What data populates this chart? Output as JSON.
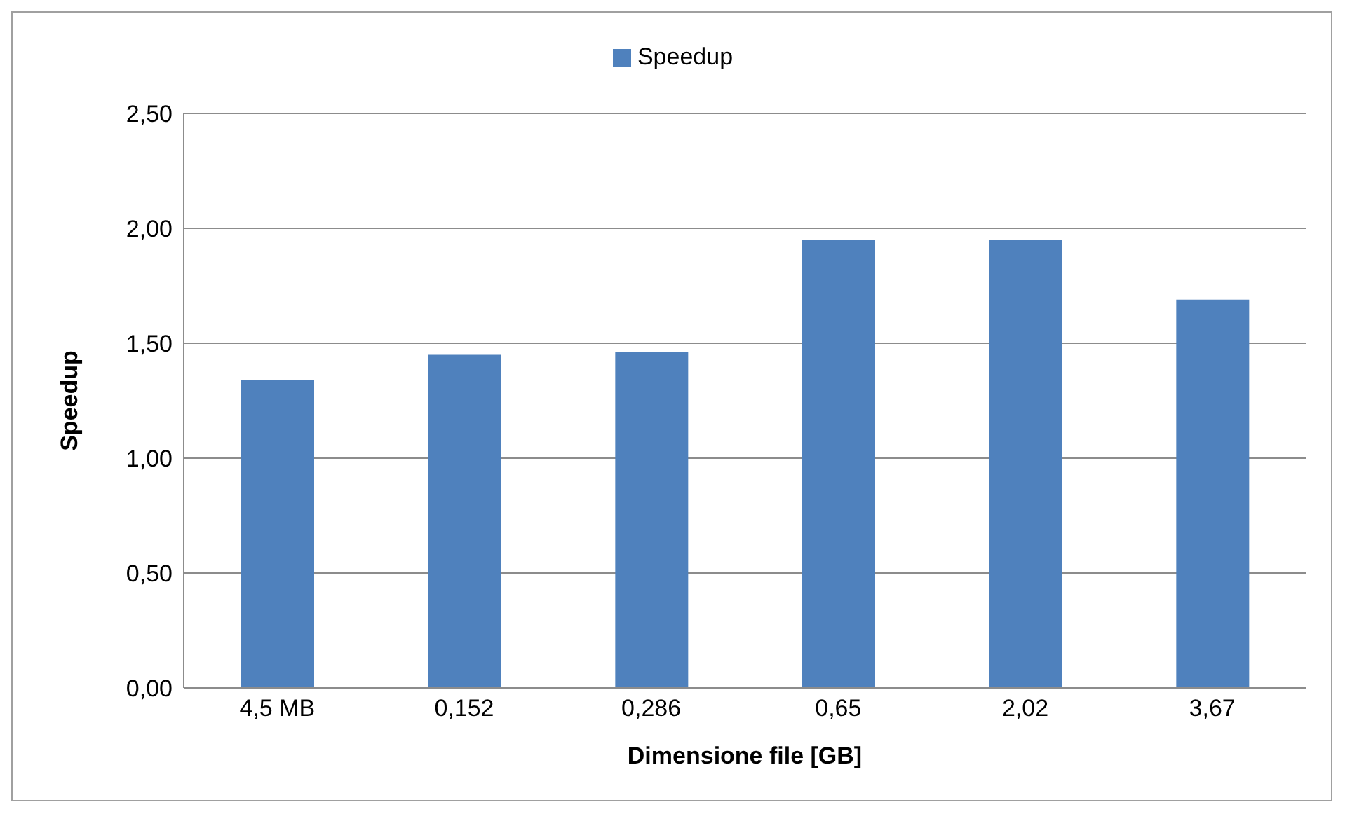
{
  "chart_data": {
    "type": "bar",
    "xlabel": "Dimensione file [GB]",
    "ylabel": "Speedup",
    "categories": [
      "4,5 MB",
      "0,152",
      "0,286",
      "0,65",
      "2,02",
      "3,67"
    ],
    "series": [
      {
        "name": "Speedup",
        "color": "#4f81bd",
        "values": [
          1.34,
          1.45,
          1.46,
          1.95,
          1.95,
          1.69
        ]
      }
    ],
    "ylim": [
      0,
      2.5
    ],
    "yticks": [
      {
        "value": 0,
        "label": "0,00"
      },
      {
        "value": 0.5,
        "label": "0,50"
      },
      {
        "value": 1,
        "label": "1,00"
      },
      {
        "value": 1.5,
        "label": "1,50"
      },
      {
        "value": 2,
        "label": "2,00"
      },
      {
        "value": 2.5,
        "label": "2,50"
      }
    ],
    "grid": "y",
    "legend": "top"
  }
}
